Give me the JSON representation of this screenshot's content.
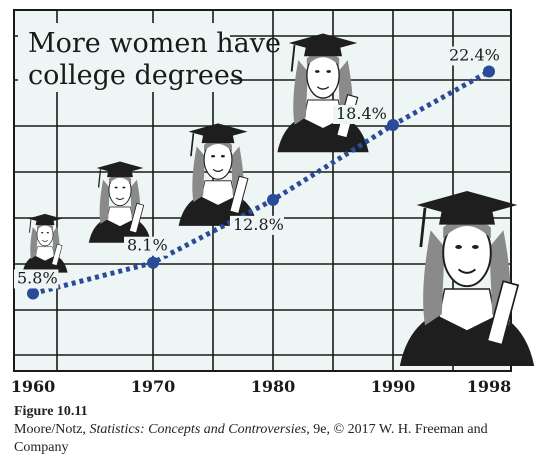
{
  "chart_data": {
    "type": "line",
    "title_lines": [
      "More women have",
      "college degrees"
    ],
    "x": [
      1960,
      1970,
      1980,
      1990,
      1998
    ],
    "y": [
      5.8,
      8.1,
      12.8,
      18.4,
      22.4
    ],
    "data_labels": [
      "5.8%",
      "8.1%",
      "12.8%",
      "18.4%",
      "22.4%"
    ],
    "x_ticks": [
      "1960",
      "1970",
      "1980",
      "1990",
      "1998"
    ],
    "xlim": [
      1958,
      1998.5
    ],
    "ylim": [
      0,
      27
    ],
    "grid": true,
    "colors": {
      "line": "#2a4b9a",
      "grid": "#1a1a1a",
      "background": "#eef5f5"
    },
    "decoration": "graduate-woman-icons"
  },
  "caption": {
    "figure_label": "Figure 10.11",
    "authors": "Moore/Notz, ",
    "book_title": "Statistics: Concepts and Controversies",
    "rest": ", 9e, © 2017 W. H. Freeman and Company"
  }
}
